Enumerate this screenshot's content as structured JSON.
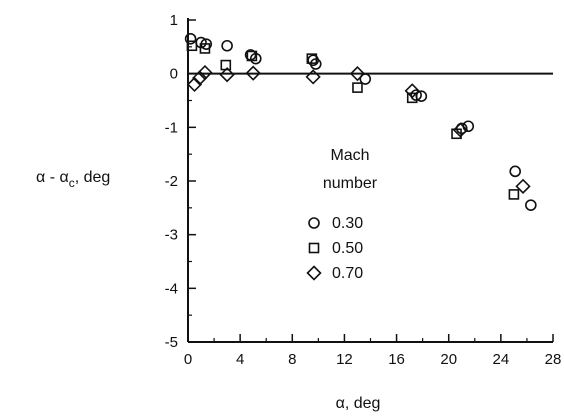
{
  "chart_data": {
    "type": "scatter",
    "title": "",
    "xlabel": "α, deg",
    "ylabel": "α - αc, deg",
    "ylabel_main": "α - α",
    "ylabel_sub": "c",
    "ylabel_tail": ", deg",
    "xlim": [
      0,
      28
    ],
    "ylim": [
      -5,
      1
    ],
    "x_ticks": [
      "0",
      "4",
      "8",
      "12",
      "16",
      "20",
      "24",
      "28"
    ],
    "y_ticks": [
      "1",
      "0",
      "-1",
      "-2",
      "-3",
      "-4",
      "-5"
    ],
    "zero_line": true,
    "grid": false,
    "legend": {
      "title_line1": "Mach",
      "title_line2": "number",
      "placement": "center-right",
      "entries": [
        {
          "label": "0.30",
          "marker": "circle"
        },
        {
          "label": "0.50",
          "marker": "square"
        },
        {
          "label": "0.70",
          "marker": "diamond"
        }
      ]
    },
    "series": [
      {
        "name": "0.30",
        "marker": "circle",
        "points": [
          [
            0.2,
            0.65
          ],
          [
            1.0,
            0.58
          ],
          [
            1.4,
            0.55
          ],
          [
            3.0,
            0.52
          ],
          [
            4.8,
            0.35
          ],
          [
            5.2,
            0.28
          ],
          [
            9.6,
            0.25
          ],
          [
            9.8,
            0.18
          ],
          [
            13.6,
            -0.1
          ],
          [
            17.5,
            -0.4
          ],
          [
            17.9,
            -0.42
          ],
          [
            21.0,
            -1.02
          ],
          [
            21.5,
            -0.98
          ],
          [
            25.1,
            -1.82
          ],
          [
            26.3,
            -2.45
          ]
        ]
      },
      {
        "name": "0.50",
        "marker": "square",
        "points": [
          [
            0.3,
            0.52
          ],
          [
            1.3,
            0.47
          ],
          [
            2.9,
            0.16
          ],
          [
            4.9,
            0.33
          ],
          [
            9.5,
            0.28
          ],
          [
            13.0,
            -0.26
          ],
          [
            17.2,
            -0.45
          ],
          [
            20.6,
            -1.12
          ],
          [
            25.0,
            -2.25
          ]
        ]
      },
      {
        "name": "0.70",
        "marker": "diamond",
        "points": [
          [
            0.5,
            -0.2
          ],
          [
            0.9,
            -0.08
          ],
          [
            1.3,
            0.02
          ],
          [
            3.0,
            -0.02
          ],
          [
            5.0,
            0.01
          ],
          [
            9.6,
            -0.06
          ],
          [
            13.0,
            0.0
          ],
          [
            17.2,
            -0.32
          ],
          [
            20.9,
            -1.05
          ],
          [
            25.7,
            -2.1
          ]
        ]
      }
    ]
  }
}
